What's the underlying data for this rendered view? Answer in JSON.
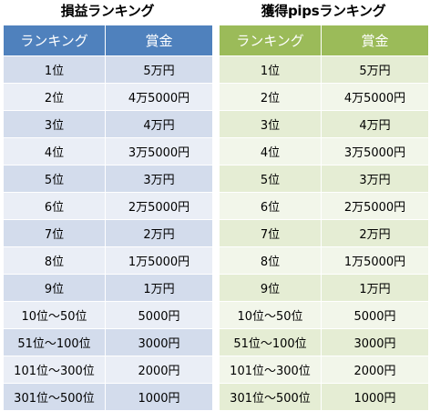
{
  "left": {
    "title": "損益ランキング",
    "columns": [
      "ランキング",
      "賞金"
    ],
    "rows": [
      [
        "1位",
        "5万円"
      ],
      [
        "2位",
        "4万5000円"
      ],
      [
        "3位",
        "4万円"
      ],
      [
        "4位",
        "3万5000円"
      ],
      [
        "5位",
        "3万円"
      ],
      [
        "6位",
        "2万5000円"
      ],
      [
        "7位",
        "2万円"
      ],
      [
        "8位",
        "1万5000円"
      ],
      [
        "9位",
        "1万円"
      ],
      [
        "10位～50位",
        "5000円"
      ],
      [
        "51位～100位",
        "3000円"
      ],
      [
        "101位～300位",
        "2000円"
      ],
      [
        "301位～500位",
        "1000円"
      ]
    ],
    "colors": {
      "header": "#4f81bd",
      "row_odd": "#d3dcec",
      "row_even": "#eaeef6"
    }
  },
  "right": {
    "title": "獲得pipsランキング",
    "columns": [
      "ランキング",
      "賞金"
    ],
    "rows": [
      [
        "1位",
        "5万円"
      ],
      [
        "2位",
        "4万5000円"
      ],
      [
        "3位",
        "4万円"
      ],
      [
        "4位",
        "3万5000円"
      ],
      [
        "5位",
        "3万円"
      ],
      [
        "6位",
        "2万5000円"
      ],
      [
        "7位",
        "2万円"
      ],
      [
        "8位",
        "1万5000円"
      ],
      [
        "9位",
        "1万円"
      ],
      [
        "10位～50位",
        "5000円"
      ],
      [
        "51位～100位",
        "3000円"
      ],
      [
        "101位～300位",
        "2000円"
      ],
      [
        "301位～500位",
        "1000円"
      ]
    ],
    "colors": {
      "header": "#9bbb59",
      "row_odd": "#e5edd4",
      "row_even": "#f2f6ea"
    }
  }
}
